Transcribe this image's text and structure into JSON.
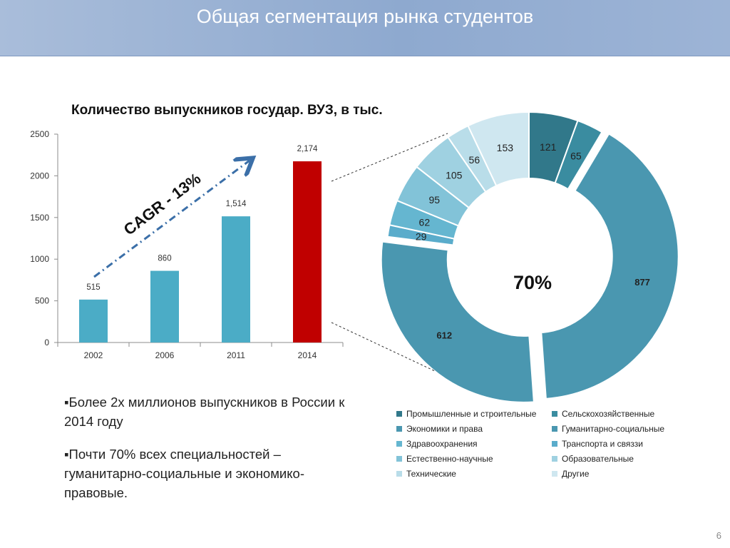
{
  "slide": {
    "title": "Общая сегментация рынка студентов",
    "page_number": "6"
  },
  "bullets": [
    "▪Более 2х миллионов выпускников в России к 2014 году",
    "▪Почти 70% всех специальностей – гуманитарно-социальные и экономико-правовые."
  ],
  "chart_data": [
    {
      "type": "bar",
      "title": "Количество выпускников государ. ВУЗ, в тыс.",
      "categories": [
        "2002",
        "2006",
        "2011",
        "2014"
      ],
      "values": [
        515,
        860,
        1514,
        2174
      ],
      "value_labels": [
        "515",
        "860",
        "1,514",
        "2,174"
      ],
      "y_ticks": [
        0,
        500,
        1000,
        1500,
        2000,
        2500
      ],
      "ylim": [
        0,
        2500
      ],
      "bar_colors": [
        "#4bacc6",
        "#4bacc6",
        "#4bacc6",
        "#c00000"
      ],
      "annotation": "CAGR - 13%",
      "grid": false
    },
    {
      "type": "pie",
      "style": "donut",
      "center_label": "70%",
      "slices": [
        {
          "name": "Промышленные и строительные",
          "value": 121,
          "label": "121",
          "color": "#31788a",
          "exploded": false
        },
        {
          "name": "Сельскохозяйственные",
          "value": 65,
          "label": "65",
          "color": "#3a8ca0",
          "exploded": false
        },
        {
          "name": "Гуманитарно-социальные",
          "value": 877,
          "label": "877",
          "color": "#4a97b0",
          "exploded": true
        },
        {
          "name": "Экономики и права",
          "value": 612,
          "label": "612",
          "color": "#4a97b0",
          "exploded": true
        },
        {
          "name": "Транспорта и связзи",
          "value": 29,
          "label": "29",
          "color": "#5aaccb",
          "exploded": false
        },
        {
          "name": "Здравоохранения",
          "value": 62,
          "label": "62",
          "color": "#65b6d0",
          "exploded": false
        },
        {
          "name": "Естественно-научные",
          "value": 95,
          "label": "95",
          "color": "#82c3d8",
          "exploded": false
        },
        {
          "name": "Образовательные",
          "value": 105,
          "label": "105",
          "color": "#9fd1e1",
          "exploded": false
        },
        {
          "name": "Технические",
          "value": 56,
          "label": "56",
          "color": "#b9dde9",
          "exploded": false
        },
        {
          "name": "Другие",
          "value": 153,
          "label": "153",
          "color": "#cfe7f0",
          "exploded": false
        }
      ],
      "legend": [
        {
          "label": "Промышленные и строительные",
          "color": "#31788a"
        },
        {
          "label": "Сельскохозяйственные",
          "color": "#3a8ca0"
        },
        {
          "label": "Экономики и права",
          "color": "#4a97b0"
        },
        {
          "label": "Гуманитарно-социальные",
          "color": "#4a97b0"
        },
        {
          "label": "Здравоохранения",
          "color": "#65b6d0"
        },
        {
          "label": "Транспорта и связзи",
          "color": "#5aaccb"
        },
        {
          "label": "Естественно-научные",
          "color": "#82c3d8"
        },
        {
          "label": "Образовательные",
          "color": "#9fd1e1"
        },
        {
          "label": "Технические",
          "color": "#b9dde9"
        },
        {
          "label": "Другие",
          "color": "#cfe7f0"
        }
      ]
    }
  ]
}
